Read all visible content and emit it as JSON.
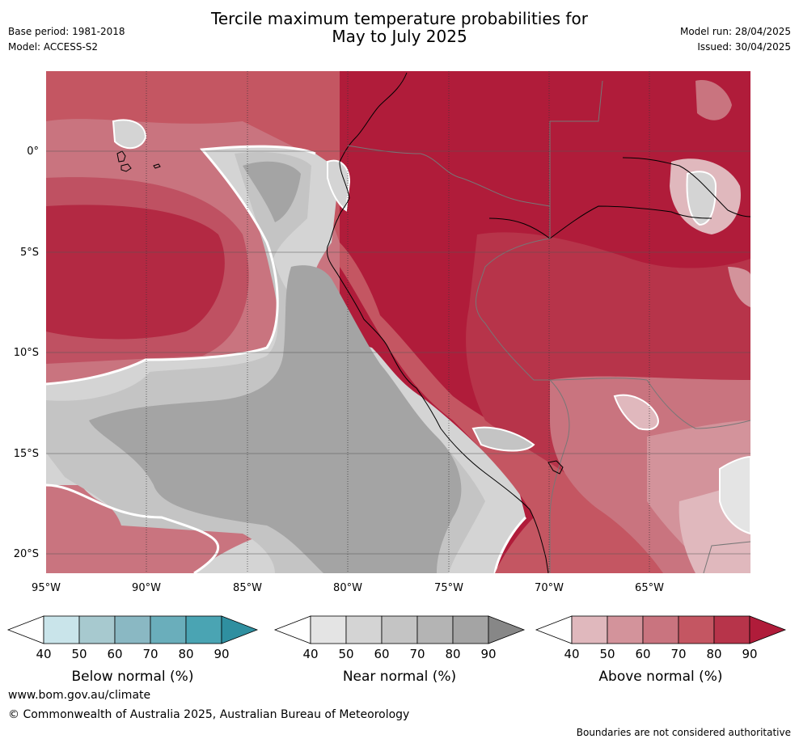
{
  "header": {
    "base_period": "Base period: 1981-2018",
    "model": "Model: ACCESS-S2",
    "title_line1": "Tercile maximum temperature probabilities for",
    "title_line2": "May to July 2025",
    "model_run": "Model run: 28/04/2025",
    "issued": "Issued: 30/04/2025"
  },
  "map": {
    "lat_labels": [
      "0°",
      "5°S",
      "10°S",
      "15°S",
      "20°S"
    ],
    "lon_labels": [
      "95°W",
      "90°W",
      "85°W",
      "80°W",
      "75°W",
      "70°W",
      "65°W"
    ],
    "extent": {
      "lon_min": -95,
      "lon_max": -60,
      "lat_min": -21,
      "lat_max": 4
    }
  },
  "legends": [
    {
      "title": "Below normal (%)",
      "ticks": [
        "40",
        "50",
        "60",
        "70",
        "80",
        "90"
      ],
      "colors": [
        "#c9e4ea",
        "#a7c9cf",
        "#8ab8c3",
        "#6aaebb",
        "#4aa4b3",
        "#2f8fa0"
      ]
    },
    {
      "title": "Near normal (%)",
      "ticks": [
        "40",
        "50",
        "60",
        "70",
        "80",
        "90"
      ],
      "colors": [
        "#e4e4e4",
        "#d4d4d4",
        "#c4c4c4",
        "#b4b4b4",
        "#a4a4a4",
        "#878787"
      ]
    },
    {
      "title": "Above normal (%)",
      "ticks": [
        "40",
        "50",
        "60",
        "70",
        "80",
        "90"
      ],
      "colors": [
        "#e0b8bd",
        "#d3939b",
        "#c9747f",
        "#c45662",
        "#b7344a",
        "#b01c3a"
      ]
    }
  ],
  "footer": {
    "url": "www.bom.gov.au/climate",
    "copyright": "© Commonwealth of Australia 2025, Australian Bureau of Meteorology",
    "disclaimer": "Boundaries are not considered authoritative"
  }
}
